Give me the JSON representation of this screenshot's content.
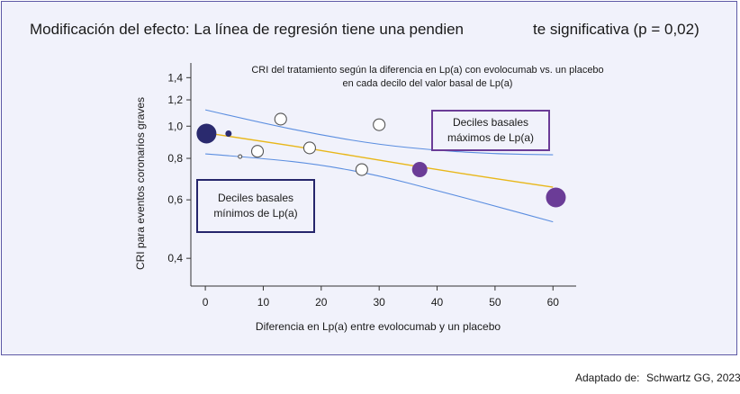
{
  "title": {
    "part1": "Modificación del efecto: La línea de regresión tiene una pendien",
    "part2": "te significativa (p = 0,02)"
  },
  "footer": {
    "label": "Adaptado de:",
    "source": "Schwartz GG, 2023"
  },
  "chart_data": {
    "type": "scatter",
    "subtitle": [
      "CRI del tratamiento según la diferencia en Lp(a) con evolocumab vs. un placebo",
      "en cada decilo del valor basal de Lp(a)"
    ],
    "xlabel": "Diferencia en Lp(a) entre evolocumab y un placebo",
    "ylabel": "CRI para eventos coronarios graves",
    "x_ticks": [
      0,
      10,
      20,
      30,
      40,
      50,
      60
    ],
    "y_ticks": [
      {
        "value": 0.4,
        "label": "0,4"
      },
      {
        "value": 0.6,
        "label": "0,6"
      },
      {
        "value": 0.8,
        "label": "0,8"
      },
      {
        "value": 1.0,
        "label": "1,0"
      },
      {
        "value": 1.2,
        "label": "1,2"
      },
      {
        "value": 1.4,
        "label": "1,4"
      }
    ],
    "ylim": [
      0.33,
      1.55
    ],
    "xlim": [
      -2.5,
      64
    ],
    "y_scale": "log",
    "points": [
      {
        "x": 0.2,
        "y": 0.95,
        "size": "large",
        "style": "filled",
        "color": "#2a2a6e"
      },
      {
        "x": 4,
        "y": 0.95,
        "size": "small",
        "style": "filled",
        "color": "#2a2a6e"
      },
      {
        "x": 6,
        "y": 0.81,
        "size": "tiny",
        "style": "open",
        "color": "#555555"
      },
      {
        "x": 9,
        "y": 0.84,
        "size": "medium",
        "style": "open",
        "color": "#555555"
      },
      {
        "x": 13,
        "y": 1.05,
        "size": "medium",
        "style": "open",
        "color": "#555555"
      },
      {
        "x": 18,
        "y": 0.86,
        "size": "medium",
        "style": "open",
        "color": "#555555"
      },
      {
        "x": 27,
        "y": 0.74,
        "size": "medium",
        "style": "open",
        "color": "#555555"
      },
      {
        "x": 30,
        "y": 1.01,
        "size": "medium",
        "style": "open",
        "color": "#555555"
      },
      {
        "x": 37,
        "y": 0.74,
        "size": "medium-large",
        "style": "filled",
        "color": "#6b3c97"
      },
      {
        "x": 60.5,
        "y": 0.61,
        "size": "large",
        "style": "filled",
        "color": "#6b3c97"
      }
    ],
    "regression_line": {
      "color": "#e8b71a",
      "x": [
        0,
        10,
        20,
        30,
        40,
        50,
        60
      ],
      "y": [
        0.955,
        0.9,
        0.845,
        0.79,
        0.74,
        0.695,
        0.655
      ]
    },
    "ci_upper": {
      "color": "#5b8ee0",
      "x": [
        0,
        10,
        20,
        30,
        40,
        50,
        60
      ],
      "y": [
        1.12,
        1.02,
        0.94,
        0.88,
        0.845,
        0.825,
        0.82
      ]
    },
    "ci_lower": {
      "color": "#5b8ee0",
      "x": [
        0,
        10,
        20,
        30,
        40,
        50,
        60
      ],
      "y": [
        0.825,
        0.8,
        0.765,
        0.71,
        0.64,
        0.575,
        0.515
      ]
    },
    "annotations": [
      {
        "lines": [
          "Deciles basales",
          "mínimos de Lp(a)"
        ],
        "border": "#25256b"
      },
      {
        "lines": [
          "Deciles basales",
          "máximos de Lp(a)"
        ],
        "border": "#6b3c97"
      }
    ]
  }
}
